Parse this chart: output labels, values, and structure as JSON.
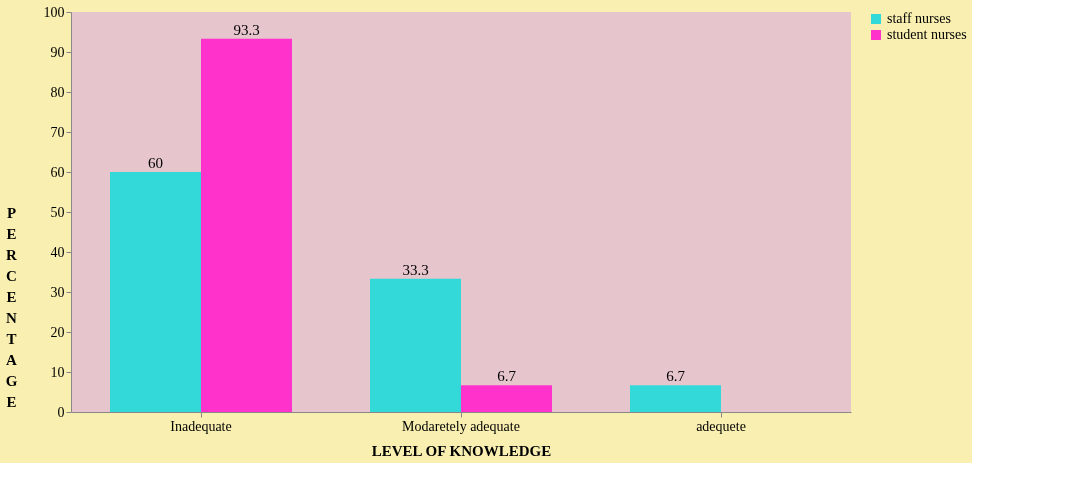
{
  "chart_data": {
    "type": "bar",
    "xlabel": "LEVEL OF KNOWLEDGE",
    "ylabel": "PERCENTAGE",
    "categories": [
      "Inadequate",
      "Modaretely adequate",
      "adequete"
    ],
    "series": [
      {
        "name": "staff nurses",
        "color": "#33d9d9",
        "values": [
          60,
          33.3,
          6.7
        ],
        "value_labels": [
          "60",
          "33.3",
          "6.7"
        ]
      },
      {
        "name": "student nurses",
        "color": "#ff33cc",
        "values": [
          93.3,
          6.7,
          null
        ],
        "value_labels": [
          "93.3",
          "6.7",
          null
        ]
      }
    ],
    "ylim": [
      0,
      100
    ],
    "yticks": [
      0,
      10,
      20,
      30,
      40,
      50,
      60,
      70,
      80,
      90,
      100
    ],
    "grid": false,
    "legend": "right"
  }
}
